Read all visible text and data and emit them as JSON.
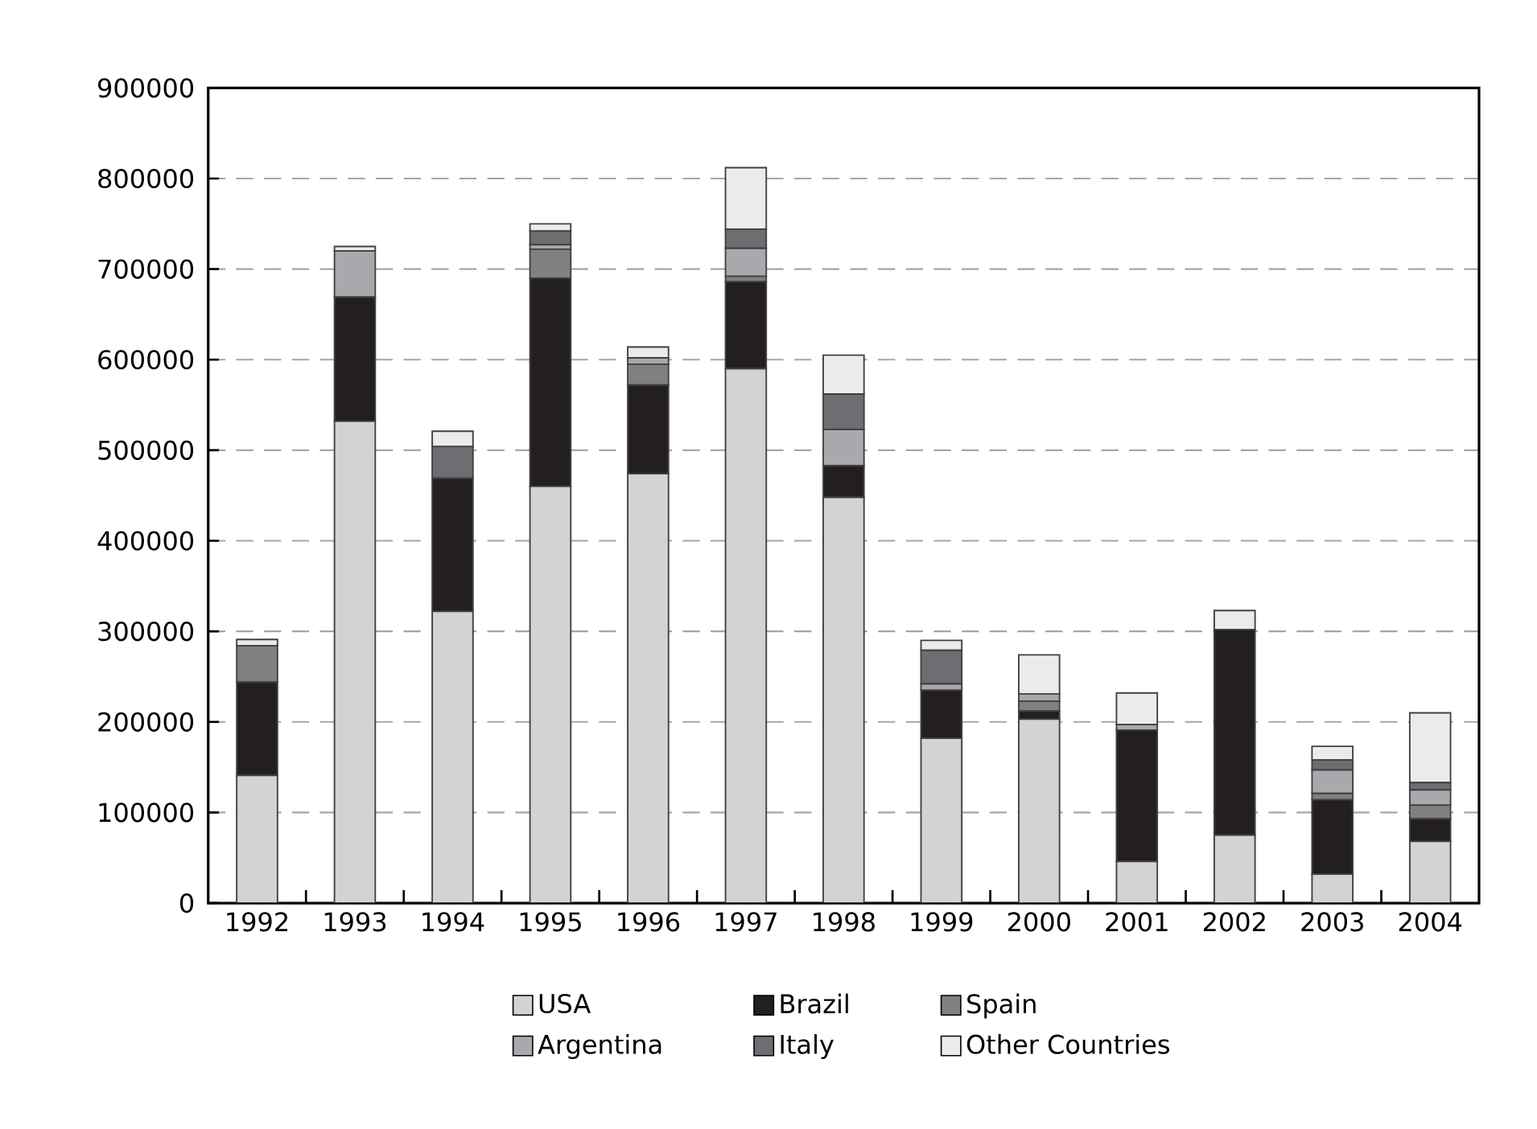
{
  "chart_data": {
    "type": "bar",
    "stacked": true,
    "categories": [
      "1992",
      "1993",
      "1994",
      "1995",
      "1996",
      "1997",
      "1998",
      "1999",
      "2000",
      "2001",
      "2002",
      "2003",
      "2004"
    ],
    "series": [
      {
        "name": "USA",
        "color": "#d1d3d4",
        "values": [
          141000,
          532000,
          322000,
          460000,
          474000,
          590000,
          448000,
          182000,
          203000,
          46000,
          75000,
          32000,
          68000
        ]
      },
      {
        "name": "Brazil",
        "color": "#231f20",
        "values": [
          103000,
          137000,
          147000,
          230000,
          98000,
          96000,
          35000,
          53000,
          9000,
          145000,
          227000,
          82000,
          25000
        ]
      },
      {
        "name": "Spain",
        "color": "#808080",
        "values": [
          40000,
          0,
          0,
          32000,
          23000,
          6000,
          0,
          0,
          11000,
          0,
          0,
          7000,
          15000
        ]
      },
      {
        "name": "Argentina",
        "color": "#a7a9ac",
        "values": [
          0,
          51000,
          0,
          5000,
          7000,
          31000,
          40000,
          7000,
          8000,
          6000,
          0,
          26000,
          17000
        ]
      },
      {
        "name": "Italy",
        "color": "#6d6e71",
        "values": [
          0,
          0,
          35000,
          15000,
          0,
          21000,
          39000,
          37000,
          0,
          0,
          0,
          11000,
          8000
        ]
      },
      {
        "name": "Other Countries",
        "color": "#ebebeb",
        "values": [
          7000,
          5000,
          17000,
          8000,
          12000,
          68000,
          43000,
          11000,
          43000,
          35000,
          21000,
          15000,
          77000
        ]
      }
    ],
    "ylim": [
      0,
      900000
    ],
    "yticks": [
      0,
      100000,
      200000,
      300000,
      400000,
      500000,
      600000,
      700000,
      800000,
      900000
    ],
    "grid": "y",
    "legend": "bottom"
  }
}
